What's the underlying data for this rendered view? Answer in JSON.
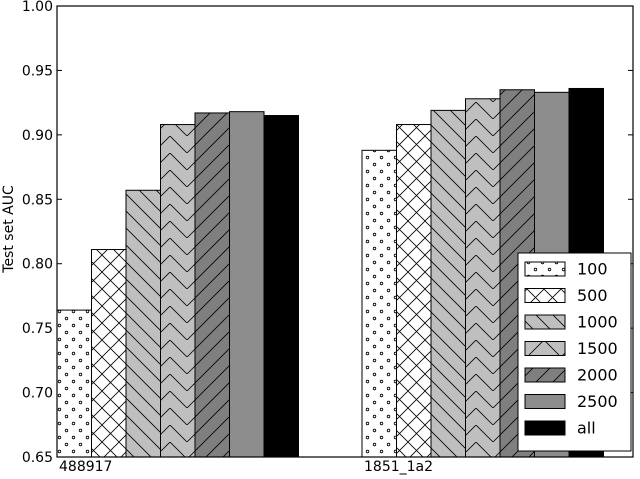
{
  "chart_data": {
    "type": "bar",
    "title": "",
    "xlabel": "",
    "ylabel": "Test set AUC",
    "ylim": [
      0.65,
      1.0
    ],
    "yticks": [
      "0.65",
      "0.70",
      "0.75",
      "0.80",
      "0.85",
      "0.90",
      "0.95",
      "1.00"
    ],
    "categories": [
      "488917",
      "1851_1a2"
    ],
    "grid": false,
    "legend_position": "bottom-right",
    "series": [
      {
        "name": "100",
        "values": [
          0.764,
          0.888
        ],
        "fill": "#ffffff",
        "pattern": "dots"
      },
      {
        "name": "500",
        "values": [
          0.811,
          0.908
        ],
        "fill": "#ffffff",
        "pattern": "cross"
      },
      {
        "name": "1000",
        "values": [
          0.857,
          0.919
        ],
        "fill": "#bfbfbf",
        "pattern": "back-diagonal"
      },
      {
        "name": "1500",
        "values": [
          0.908,
          0.928
        ],
        "fill": "#bfbfbf",
        "pattern": "chevron"
      },
      {
        "name": "2000",
        "values": [
          0.917,
          0.935
        ],
        "fill": "#7f7f7f",
        "pattern": "forward-diagonal"
      },
      {
        "name": "2500",
        "values": [
          0.918,
          0.933
        ],
        "fill": "#8c8c8c",
        "pattern": "none"
      },
      {
        "name": "all",
        "values": [
          0.915,
          0.936
        ],
        "fill": "#000000",
        "pattern": "none"
      }
    ]
  }
}
